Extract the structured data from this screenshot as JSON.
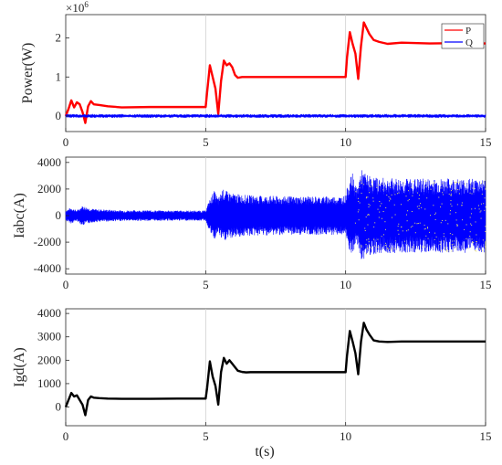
{
  "chart_data": [
    {
      "type": "line",
      "ylabel": "Power(W)",
      "xlabel": "",
      "exponent_label": "×10^6",
      "xlim": [
        0,
        15
      ],
      "ylim": [
        -0.4,
        2.6
      ],
      "xticks": [
        0,
        5,
        10,
        15
      ],
      "yticks": [
        0,
        1,
        2
      ],
      "grid": "vertical",
      "legend_position": "top-right",
      "series": [
        {
          "name": "P",
          "color": "#ff0000",
          "x": [
            0,
            0.1,
            0.2,
            0.3,
            0.4,
            0.5,
            0.6,
            0.7,
            0.8,
            0.9,
            1.0,
            1.2,
            1.5,
            2.0,
            3.0,
            4.0,
            5.0,
            5.05,
            5.15,
            5.25,
            5.35,
            5.45,
            5.55,
            5.65,
            5.75,
            5.85,
            5.95,
            6.05,
            6.15,
            6.3,
            6.45,
            6.6,
            6.8,
            7.0,
            8.0,
            9.0,
            10.0,
            10.05,
            10.15,
            10.25,
            10.35,
            10.45,
            10.55,
            10.65,
            10.75,
            10.85,
            11.0,
            11.2,
            11.5,
            12.0,
            13.0,
            14.0,
            15.0
          ],
          "y": [
            0.0,
            0.18,
            0.4,
            0.22,
            0.35,
            0.3,
            0.1,
            -0.18,
            0.25,
            0.38,
            0.3,
            0.28,
            0.25,
            0.22,
            0.23,
            0.23,
            0.23,
            0.6,
            1.3,
            1.0,
            0.7,
            0.05,
            0.9,
            1.42,
            1.3,
            1.35,
            1.25,
            1.05,
            0.98,
            1.0,
            1.0,
            1.0,
            1.0,
            1.0,
            1.0,
            1.0,
            1.0,
            1.5,
            2.15,
            1.85,
            1.6,
            0.95,
            1.8,
            2.4,
            2.25,
            2.1,
            1.95,
            1.9,
            1.85,
            1.88,
            1.86,
            1.87,
            1.86
          ]
        },
        {
          "name": "Q",
          "color": "#0000ff",
          "x": [
            0,
            15
          ],
          "y": [
            0,
            0
          ],
          "noise_amplitude": 0.05
        }
      ]
    },
    {
      "type": "line",
      "ylabel": "Iabc(A)",
      "xlabel": "",
      "xlim": [
        0,
        15
      ],
      "ylim": [
        -4400,
        4400
      ],
      "xticks": [
        0,
        5,
        10,
        15
      ],
      "yticks": [
        -4000,
        -2000,
        0,
        2000,
        4000
      ],
      "grid": "vertical",
      "series": [
        {
          "name": "",
          "color": "#0000ff",
          "envelope_x": [
            0,
            0.2,
            0.4,
            0.6,
            0.8,
            1.0,
            1.5,
            2.0,
            3.0,
            4.0,
            5.0,
            5.1,
            5.3,
            5.45,
            5.6,
            5.8,
            6.0,
            6.5,
            7.0,
            8.0,
            9.0,
            9.9,
            10.0,
            10.1,
            10.25,
            10.4,
            10.55,
            10.7,
            10.9,
            11.2,
            12.0,
            13.0,
            14.0,
            15.0
          ],
          "envelope_amplitude": [
            400,
            600,
            400,
            750,
            600,
            500,
            450,
            400,
            400,
            380,
            380,
            1000,
            1900,
            1300,
            2000,
            1800,
            1650,
            1550,
            1500,
            1450,
            1450,
            1450,
            1550,
            2500,
            3200,
            2000,
            3500,
            3200,
            2950,
            2850,
            2800,
            2800,
            2800,
            2800
          ]
        }
      ]
    },
    {
      "type": "line",
      "ylabel": "Igd(A)",
      "xlabel": "t(s)",
      "xlim": [
        0,
        15
      ],
      "ylim": [
        -800,
        4200
      ],
      "xticks": [
        0,
        5,
        10,
        15
      ],
      "yticks": [
        0,
        1000,
        2000,
        3000,
        4000
      ],
      "grid": "vertical",
      "series": [
        {
          "name": "",
          "color": "#000000",
          "x": [
            0,
            0.1,
            0.2,
            0.3,
            0.4,
            0.5,
            0.6,
            0.7,
            0.8,
            0.9,
            1.0,
            1.2,
            1.5,
            2.0,
            3.0,
            4.0,
            5.0,
            5.05,
            5.15,
            5.25,
            5.35,
            5.45,
            5.55,
            5.65,
            5.75,
            5.85,
            5.95,
            6.05,
            6.15,
            6.3,
            6.45,
            6.6,
            6.8,
            7.0,
            8.0,
            9.0,
            10.0,
            10.05,
            10.15,
            10.25,
            10.35,
            10.45,
            10.55,
            10.65,
            10.75,
            10.85,
            11.0,
            11.2,
            11.5,
            12.0,
            13.0,
            14.0,
            15.0
          ],
          "y": [
            0,
            300,
            600,
            450,
            500,
            300,
            100,
            -350,
            300,
            450,
            400,
            380,
            360,
            350,
            350,
            360,
            360,
            800,
            1950,
            1300,
            900,
            100,
            1500,
            2100,
            1850,
            2000,
            1850,
            1700,
            1550,
            1500,
            1480,
            1490,
            1490,
            1490,
            1490,
            1490,
            1490,
            2200,
            3250,
            2800,
            2300,
            1400,
            2800,
            3600,
            3300,
            3100,
            2850,
            2800,
            2780,
            2800,
            2800,
            2800,
            2800
          ]
        }
      ]
    }
  ]
}
